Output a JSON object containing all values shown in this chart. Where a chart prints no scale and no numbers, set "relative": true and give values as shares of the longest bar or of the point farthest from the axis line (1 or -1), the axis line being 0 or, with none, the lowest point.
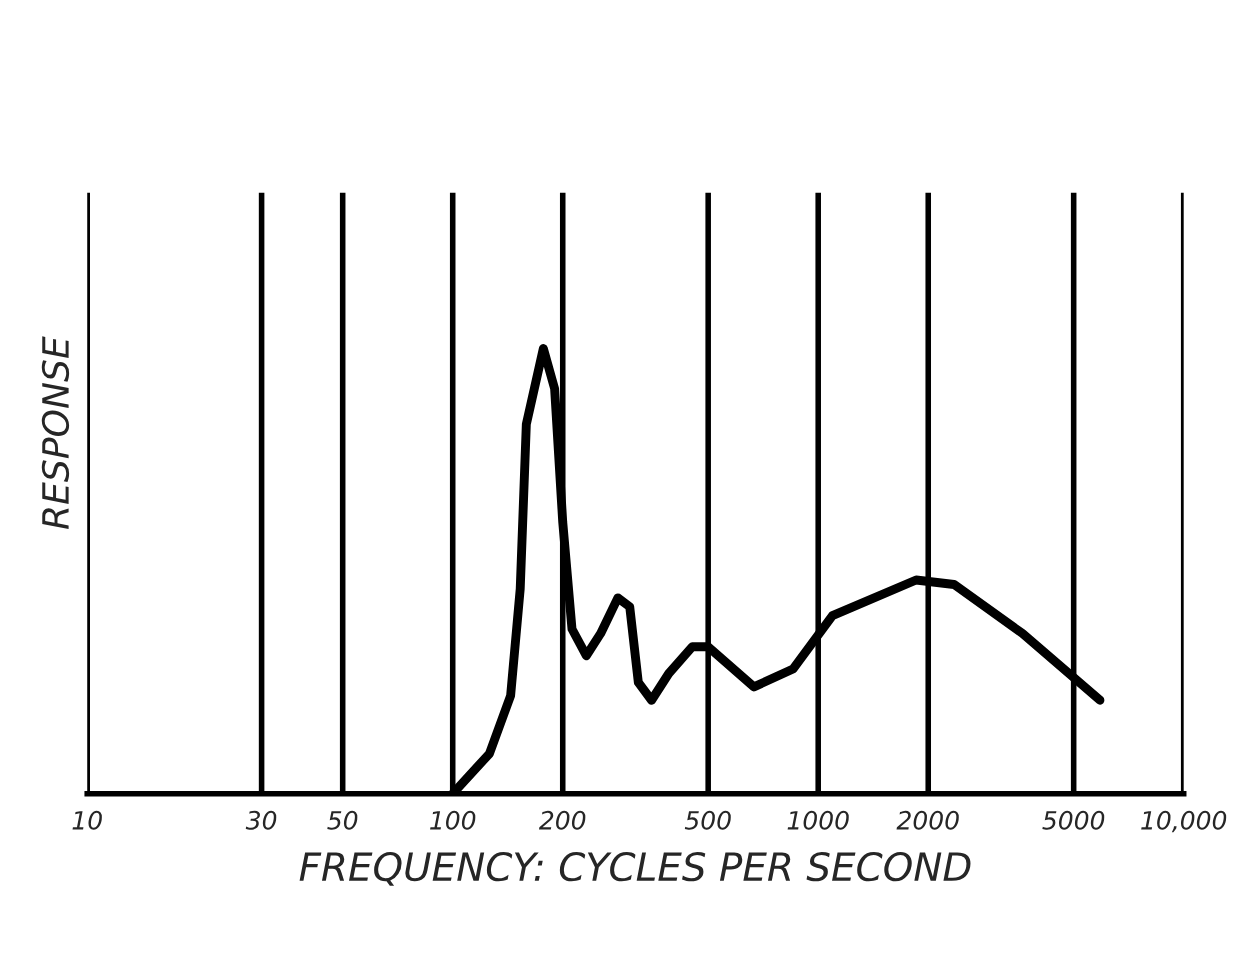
{
  "chart_data": {
    "type": "line",
    "relative": true,
    "xlabel": "FREQUENCY: CYCLES PER SECOND",
    "ylabel": "RESPONSE",
    "log": "x",
    "grid": "x",
    "xlim": [
      10,
      10000
    ],
    "xticks": [
      10,
      30,
      50,
      100,
      200,
      500,
      1000,
      2000,
      5000,
      {
        "value": 10000,
        "label": "10,000"
      }
    ],
    "x": [
      100,
      126,
      144,
      153,
      159,
      177,
      190,
      200,
      212,
      232,
      254,
      283,
      305,
      322,
      350,
      390,
      452,
      500,
      667,
      853,
      1094,
      1853,
      2353,
      3620,
      5900
    ],
    "series": [
      {
        "color": "#000000",
        "values": [
          0,
          0.09,
          0.22,
          0.46,
          0.83,
          1.0,
          0.91,
          0.61,
          0.37,
          0.31,
          0.36,
          0.44,
          0.42,
          0.25,
          0.21,
          0.27,
          0.33,
          0.33,
          0.24,
          0.28,
          0.4,
          0.48,
          0.47,
          0.36,
          0.21
        ]
      }
    ]
  }
}
